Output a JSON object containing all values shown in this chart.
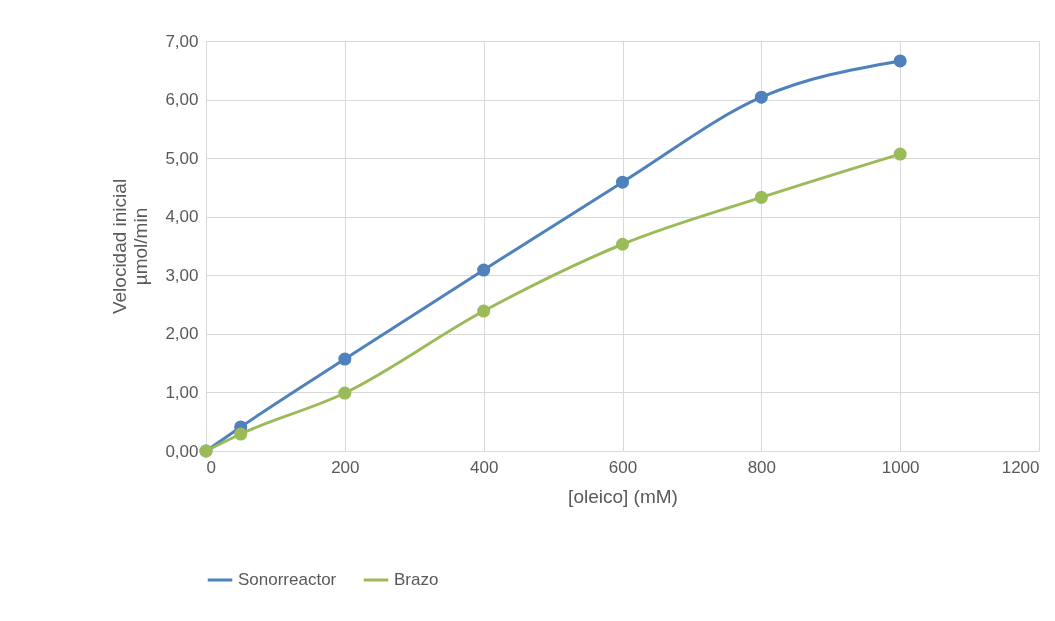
{
  "chart_data": {
    "type": "line",
    "xlabel": "[oleico] (mM)",
    "ylabel": "Velocidad inicial\nµmol/min",
    "x": [
      0,
      50,
      200,
      400,
      600,
      800,
      1000
    ],
    "series": [
      {
        "name": "Sonorreactor",
        "color": "#4f81bd",
        "values": [
          0,
          0.41,
          1.57,
          3.09,
          4.59,
          6.04,
          6.66
        ]
      },
      {
        "name": "Brazo",
        "color": "#9bbb59",
        "values": [
          0,
          0.29,
          0.99,
          2.39,
          3.53,
          4.33,
          5.07
        ]
      }
    ],
    "xlim": [
      0,
      1200
    ],
    "xticks": [
      0,
      200,
      400,
      600,
      800,
      1000,
      1200
    ],
    "ylim": [
      0,
      7
    ],
    "yticks": [
      {
        "value": 0,
        "label": "0,00"
      },
      {
        "value": 1,
        "label": "1,00"
      },
      {
        "value": 2,
        "label": "2,00"
      },
      {
        "value": 3,
        "label": "3,00"
      },
      {
        "value": 4,
        "label": "4,00"
      },
      {
        "value": 5,
        "label": "5,00"
      },
      {
        "value": 6,
        "label": "6,00"
      },
      {
        "value": 7,
        "label": "7,00"
      }
    ],
    "grid": true,
    "legend": "bottom",
    "marker": "circle",
    "line_style": "solid"
  }
}
